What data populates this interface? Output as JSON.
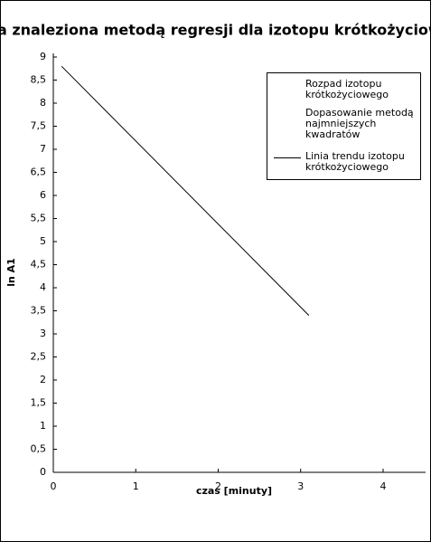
{
  "chart_data": {
    "type": "line",
    "title": "ta znaleziona metodą regresji dla izotopu krótkożyciow",
    "x_label": "czas  [minuty]",
    "y_label": "ln A1",
    "x": [
      0.1,
      3.1
    ],
    "series": [
      {
        "name": "Rozpad izotopu krótkożyciowego",
        "color": "none",
        "values": [
          null,
          null
        ]
      },
      {
        "name": "Dopasowanie metodą najmniejszych kwadratów",
        "color": "none",
        "values": [
          null,
          null
        ]
      },
      {
        "name": "Linia trendu izotopu krótkożyciowego",
        "color": "#000000",
        "values": [
          8.8,
          3.4
        ]
      }
    ],
    "xlim": [
      0,
      4.5
    ],
    "xticks": [
      0,
      1,
      2,
      3,
      4
    ],
    "ylim": [
      0,
      9
    ],
    "yticks": [
      0,
      {
        "value": 0.5,
        "label": "0,5"
      },
      1,
      {
        "value": 1.5,
        "label": "1,5"
      },
      2,
      {
        "value": 2.5,
        "label": "2,5"
      },
      3,
      {
        "value": 3.5,
        "label": "3,5"
      },
      4,
      {
        "value": 4.5,
        "label": "4,5"
      },
      5,
      {
        "value": 5.5,
        "label": "5,5"
      },
      6,
      {
        "value": 6.5,
        "label": "6,5"
      },
      7,
      {
        "value": 7.5,
        "label": "7,5"
      },
      8,
      {
        "value": 8.5,
        "label": "8,5"
      },
      9
    ],
    "grid": false,
    "legend": "upper-right"
  }
}
